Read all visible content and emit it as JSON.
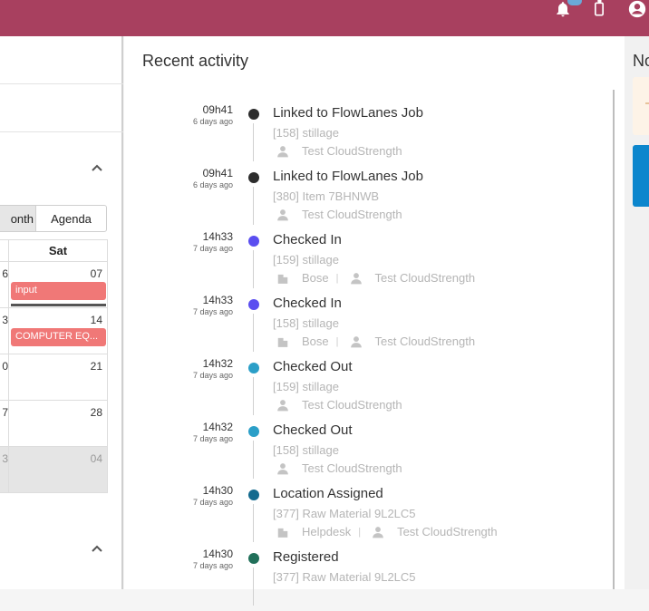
{
  "colors": {
    "topbar": "#a8405f",
    "event": "#f07877",
    "accent_blue": "#0c86cd"
  },
  "topbar": {
    "icons": [
      "bell-icon",
      "mobile-lock-icon",
      "account-circle-icon"
    ]
  },
  "calendar": {
    "view_buttons": {
      "month": "onth",
      "agenda": "Agenda"
    },
    "header_day": "Sat",
    "rows": [
      {
        "prev": "6",
        "day": "07",
        "event": "input"
      },
      {
        "prev": "3",
        "day": "14",
        "event": "COMPUTER EQ..."
      },
      {
        "prev": "0",
        "day": "21",
        "event": ""
      },
      {
        "prev": "7",
        "day": "28",
        "event": ""
      },
      {
        "prev": "3",
        "day": "04",
        "event": ""
      }
    ]
  },
  "activity": {
    "title": "Recent activity",
    "entries": [
      {
        "time": "09h41",
        "ago": "6 days ago",
        "title": "Linked to FlowLanes Job",
        "sub": "[158] stillage",
        "location": "",
        "user": "Test CloudStrength",
        "color": "#2d2d2d"
      },
      {
        "time": "09h41",
        "ago": "6 days ago",
        "title": "Linked to FlowLanes Job",
        "sub": "[380] Item 7BHNWB",
        "location": "",
        "user": "Test CloudStrength",
        "color": "#2d2d2d"
      },
      {
        "time": "14h33",
        "ago": "7 days ago",
        "title": "Checked In",
        "sub": "[159] stillage",
        "location": "Bose",
        "user": "Test CloudStrength",
        "color": "#5a4ef0"
      },
      {
        "time": "14h33",
        "ago": "7 days ago",
        "title": "Checked In",
        "sub": "[158] stillage",
        "location": "Bose",
        "user": "Test CloudStrength",
        "color": "#5a4ef0"
      },
      {
        "time": "14h32",
        "ago": "7 days ago",
        "title": "Checked Out",
        "sub": "[159] stillage",
        "location": "",
        "user": "Test CloudStrength",
        "color": "#2b9fc8"
      },
      {
        "time": "14h32",
        "ago": "7 days ago",
        "title": "Checked Out",
        "sub": "[158] stillage",
        "location": "",
        "user": "Test CloudStrength",
        "color": "#2b9fc8"
      },
      {
        "time": "14h30",
        "ago": "7 days ago",
        "title": "Location Assigned",
        "sub": "[377] Raw Material 9L2LC5",
        "location": "Helpdesk",
        "user": "Test CloudStrength",
        "color": "#136a8e"
      },
      {
        "time": "14h30",
        "ago": "7 days ago",
        "title": "Registered",
        "sub": "[377] Raw Material 9L2LC5",
        "location": "",
        "user": "",
        "color": "#21705a"
      }
    ]
  },
  "right_panel": {
    "title": "No"
  }
}
